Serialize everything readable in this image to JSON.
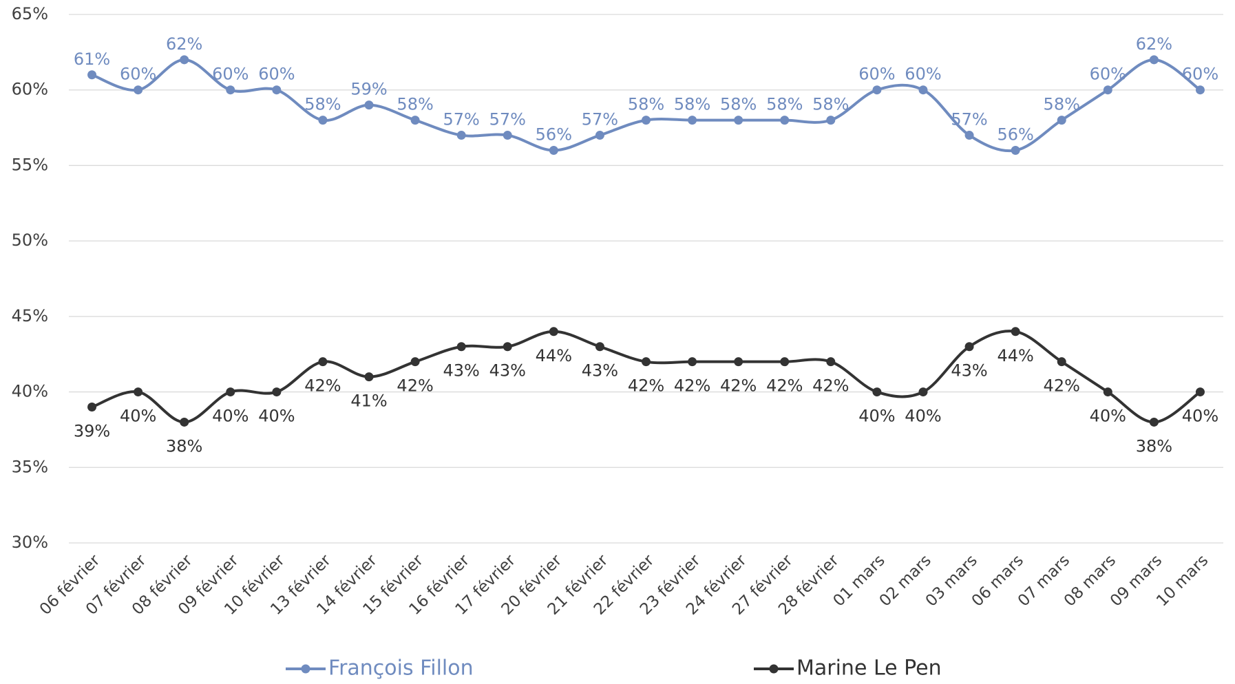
{
  "chart_data": {
    "type": "line",
    "categories": [
      "06 février",
      "07 février",
      "08 février",
      "09 février",
      "10 février",
      "13 février",
      "14 février",
      "15 février",
      "16 février",
      "17 février",
      "20 février",
      "21 février",
      "22 février",
      "23 février",
      "24 février",
      "27 février",
      "28 février",
      "01 mars",
      "02 mars",
      "03 mars",
      "06 mars",
      "07 mars",
      "08 mars",
      "09 mars",
      "10 mars"
    ],
    "series": [
      {
        "name": "François Fillon",
        "color": "#6f8bbf",
        "values": [
          61,
          60,
          62,
          60,
          60,
          58,
          59,
          58,
          57,
          57,
          56,
          57,
          58,
          58,
          58,
          58,
          58,
          60,
          60,
          57,
          56,
          58,
          60,
          62,
          60
        ],
        "value_labels": [
          "61%",
          "60%",
          "62%",
          "60%",
          "60%",
          "58%",
          "59%",
          "58%",
          "57%",
          "57%",
          "56%",
          "57%",
          "58%",
          "58%",
          "58%",
          "58%",
          "58%",
          "60%",
          "60%",
          "57%",
          "56%",
          "58%",
          "60%",
          "62%",
          "60%"
        ]
      },
      {
        "name": "Marine Le Pen",
        "color": "#333333",
        "values": [
          39,
          40,
          38,
          40,
          40,
          42,
          41,
          42,
          43,
          43,
          44,
          43,
          42,
          42,
          42,
          42,
          42,
          40,
          40,
          43,
          44,
          42,
          40,
          38,
          40
        ],
        "value_labels": [
          "39%",
          "40%",
          "38%",
          "40%",
          "40%",
          "42%",
          "41%",
          "42%",
          "43%",
          "43%",
          "44%",
          "43%",
          "42%",
          "42%",
          "42%",
          "42%",
          "42%",
          "40%",
          "40%",
          "43%",
          "44%",
          "42%",
          "40%",
          "38%",
          "40%"
        ]
      }
    ],
    "ylim": [
      30,
      65
    ],
    "yticks": [
      {
        "value": 30,
        "label": "30%"
      },
      {
        "value": 35,
        "label": "35%"
      },
      {
        "value": 40,
        "label": "40%"
      },
      {
        "value": 45,
        "label": "45%"
      },
      {
        "value": 50,
        "label": "50%"
      },
      {
        "value": 55,
        "label": "55%"
      },
      {
        "value": 60,
        "label": "60%"
      },
      {
        "value": 65,
        "label": "65%"
      }
    ],
    "grid": true,
    "legend": "bottom"
  }
}
